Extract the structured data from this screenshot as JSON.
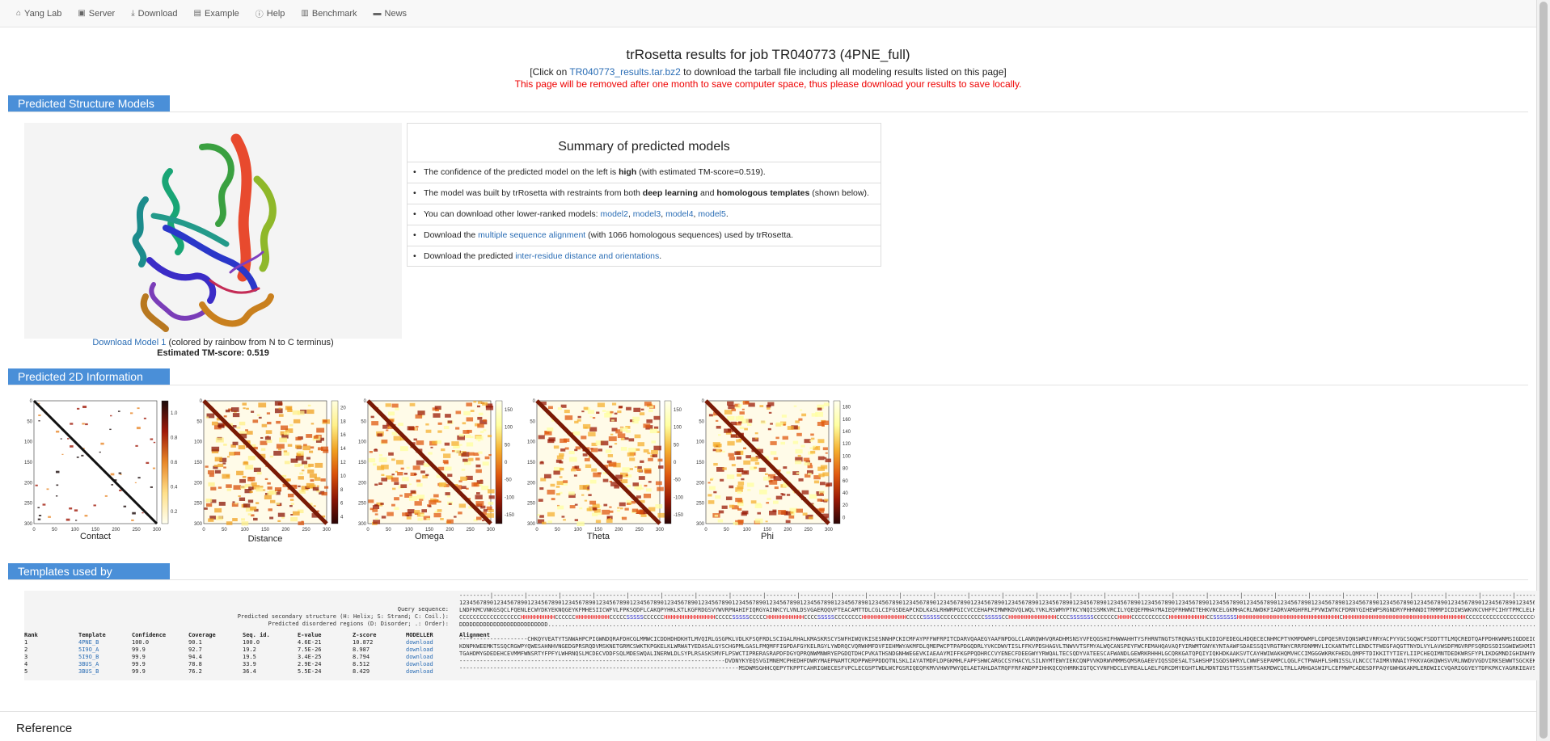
{
  "nav": [
    {
      "icon": "home-icon",
      "glyph": "⌂",
      "label": "Yang Lab"
    },
    {
      "icon": "server-icon",
      "glyph": "▣",
      "label": "Server"
    },
    {
      "icon": "download-icon",
      "glyph": "⤓",
      "label": "Download"
    },
    {
      "icon": "file-icon",
      "glyph": "▤",
      "label": "Example"
    },
    {
      "icon": "help-icon",
      "glyph": "ⓘ",
      "label": "Help"
    },
    {
      "icon": "book-icon",
      "glyph": "▥",
      "label": "Benchmark"
    },
    {
      "icon": "comment-icon",
      "glyph": "▬",
      "label": "News"
    }
  ],
  "header": {
    "title": "trRosetta results for job TR040773 (4PNE_full)",
    "click_prefix": "[Click on ",
    "tarball_link": "TR040773_results.tar.bz2",
    "click_suffix": " to download the tarball file including all modeling results listed on this page]",
    "warning": "This page will be removed after one month to save computer space, thus please download your results to save locally."
  },
  "sections": {
    "models": "Predicted Structure Models",
    "info2d": "Predicted 2D Information",
    "templates": "Templates used by trRosetta"
  },
  "model": {
    "download_link": "Download Model 1",
    "download_suffix": " (colored by rainbow from N to C terminus)",
    "tm_score": "Estimated TM-score: 0.519"
  },
  "summary": {
    "title": "Summary of predicted models",
    "b1_pre": "The confidence of the predicted model on the left is ",
    "b1_bold": "high",
    "b1_post": " (with estimated TM-score=0.519).",
    "b2_pre": "The model was built by trRosetta with restraints from both ",
    "b2_bold1": "deep learning",
    "b2_mid": " and ",
    "b2_bold2": "homologous templates",
    "b2_post": " (shown below).",
    "b3_pre": "You can download other lower-ranked models: ",
    "b3_links": [
      "model2",
      "model3",
      "model4",
      "model5"
    ],
    "b3_post": ".",
    "b4_pre": "Download the ",
    "b4_link": "multiple sequence alignment",
    "b4_post": " (with 1066 homologous sequences) used by trRosetta.",
    "b5_pre": "Download the predicted ",
    "b5_link": "inter-residue distance and orientations",
    "b5_post": "."
  },
  "plots": [
    {
      "caption": "Contact",
      "ticks": [
        "0.2",
        "0.4",
        "0.6",
        "0.8",
        "1.0"
      ],
      "palette": "contact"
    },
    {
      "caption": "Distance",
      "ticks": [
        "4",
        "6",
        "8",
        "10",
        "12",
        "14",
        "16",
        "18",
        "20"
      ],
      "palette": "distance"
    },
    {
      "caption": "Omega",
      "ticks": [
        "-150",
        "-100",
        "-50",
        "0",
        "50",
        "100",
        "150"
      ],
      "palette": "omega"
    },
    {
      "caption": "Theta",
      "ticks": [
        "-150",
        "-100",
        "-50",
        "0",
        "50",
        "100",
        "150"
      ],
      "palette": "omega"
    },
    {
      "caption": "Phi",
      "ticks": [
        "0",
        "20",
        "40",
        "60",
        "80",
        "100",
        "120",
        "140",
        "160",
        "180"
      ],
      "palette": "phi"
    }
  ],
  "plot_axis_ticks": [
    "0",
    "50",
    "100",
    "150",
    "200",
    "250",
    "300"
  ],
  "templates": {
    "label_query": "Query sequence:",
    "label_ss": "Predicted secondary structure (H: Helix; S: Strand; C: Coil.):",
    "label_dis": "Predicted disordered regions (D: Disorder; .: Order):",
    "headers": [
      "Rank",
      "Template",
      "Confidence",
      "Coverage",
      "Seq. id.",
      "E-value",
      "Z-score",
      "MODELLER",
      "Alignment"
    ],
    "rows": [
      [
        "1",
        "4PNE_B",
        "100.0",
        "90.1",
        "100.0",
        "4.6E-21",
        "10.872",
        "download"
      ],
      [
        "2",
        "5I9O_A",
        "99.9",
        "92.7",
        "19.2",
        "7.5E-26",
        "8.987",
        "download"
      ],
      [
        "3",
        "5I9O_B",
        "99.9",
        "94.4",
        "19.5",
        "3.4E-25",
        "8.794",
        "download"
      ],
      [
        "4",
        "3BUS_A",
        "99.9",
        "78.8",
        "33.9",
        "2.9E-24",
        "8.512",
        "download"
      ],
      [
        "5",
        "3BUS_B",
        "99.9",
        "76.2",
        "36.4",
        "5.5E-24",
        "8.429",
        "download"
      ]
    ]
  },
  "reference": "Reference",
  "colors": {
    "accent": "#4a8fd8",
    "link": "#2a6db5",
    "warning": "#e00000"
  }
}
